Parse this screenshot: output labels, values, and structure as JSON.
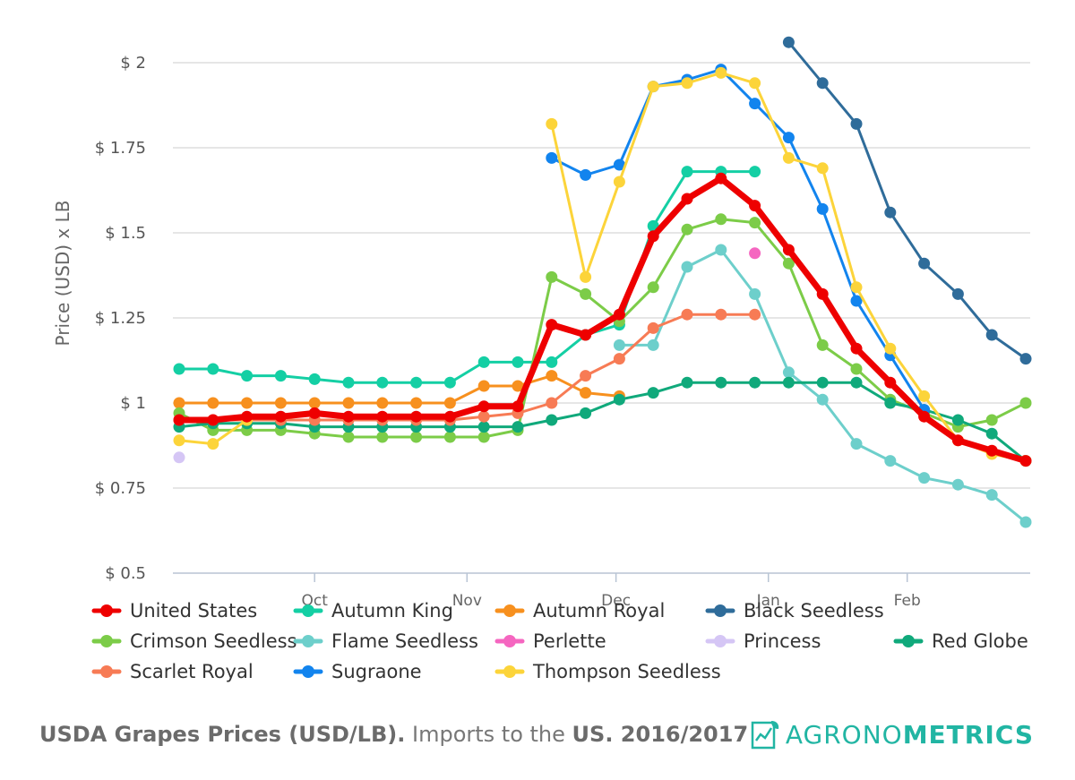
{
  "chart_data": {
    "type": "line",
    "ylabel": "Price (USD) x LB",
    "ylim": [
      0.5,
      2.05
    ],
    "yticks": [
      0.5,
      0.75,
      1,
      1.25,
      1.5,
      1.75,
      2
    ],
    "ytick_labels": [
      "$ 0.5",
      "$ 0.75",
      "$ 1",
      "$ 1.25",
      "$ 1.5",
      "$ 1.75",
      "$ 2"
    ],
    "x_index_range": [
      0,
      25.3
    ],
    "xticks": [
      {
        "label": "Oct",
        "at": 4
      },
      {
        "label": "Nov",
        "at": 8.5
      },
      {
        "label": "Dec",
        "at": 12.9
      },
      {
        "label": "Jan",
        "at": 17.4
      },
      {
        "label": "Feb",
        "at": 21.5
      }
    ],
    "weeks": 26,
    "series": [
      {
        "name": "United States",
        "color": "#ee0000",
        "weight": 7,
        "values": [
          0.95,
          0.95,
          0.96,
          0.96,
          0.97,
          0.96,
          0.96,
          0.96,
          0.96,
          0.99,
          0.99,
          1.23,
          1.2,
          1.26,
          1.49,
          1.6,
          1.66,
          1.58,
          1.45,
          1.32,
          1.16,
          1.06,
          0.96,
          0.89,
          0.86,
          0.83
        ]
      },
      {
        "name": "Autumn King",
        "color": "#14cfa4",
        "weight": 3,
        "values": [
          1.1,
          1.1,
          1.08,
          1.08,
          1.07,
          1.06,
          1.06,
          1.06,
          1.06,
          1.12,
          1.12,
          1.12,
          1.2,
          1.23,
          1.52,
          1.68,
          1.68,
          1.68,
          null,
          null,
          null,
          null,
          null,
          null,
          null,
          null
        ]
      },
      {
        "name": "Autumn Royal",
        "color": "#f7901e",
        "weight": 3,
        "values": [
          1.0,
          1.0,
          1.0,
          1.0,
          1.0,
          1.0,
          1.0,
          1.0,
          1.0,
          1.05,
          1.05,
          1.08,
          1.03,
          1.02,
          null,
          null,
          null,
          null,
          null,
          null,
          null,
          null,
          null,
          null,
          null,
          null
        ]
      },
      {
        "name": "Black Seedless",
        "color": "#2f6c9a",
        "weight": 3,
        "values": [
          null,
          null,
          null,
          null,
          null,
          null,
          null,
          null,
          null,
          null,
          null,
          null,
          null,
          null,
          null,
          null,
          null,
          null,
          2.06,
          1.94,
          1.82,
          1.56,
          1.41,
          1.32,
          1.2,
          1.13
        ]
      },
      {
        "name": "Crimson Seedless",
        "color": "#7ccc48",
        "weight": 3,
        "values": [
          0.97,
          0.92,
          0.92,
          0.92,
          0.91,
          0.9,
          0.9,
          0.9,
          0.9,
          0.9,
          0.92,
          1.37,
          1.32,
          1.24,
          1.34,
          1.51,
          1.54,
          1.53,
          1.41,
          1.17,
          1.1,
          1.01,
          0.97,
          0.93,
          0.95,
          1.0
        ]
      },
      {
        "name": "Flame Seedless",
        "color": "#6dcfcb",
        "weight": 3,
        "values": [
          null,
          null,
          null,
          null,
          null,
          null,
          null,
          null,
          null,
          null,
          null,
          null,
          null,
          1.17,
          1.17,
          1.4,
          1.45,
          1.32,
          1.09,
          1.01,
          0.88,
          0.83,
          0.78,
          0.76,
          0.73,
          0.65
        ]
      },
      {
        "name": "Perlette",
        "color": "#f566c0",
        "weight": 3,
        "values": [
          null,
          null,
          null,
          null,
          null,
          null,
          null,
          null,
          null,
          null,
          null,
          null,
          null,
          null,
          null,
          null,
          null,
          1.44,
          null,
          null,
          null,
          null,
          null,
          null,
          null,
          null
        ]
      },
      {
        "name": "Princess",
        "color": "#d5c6f5",
        "weight": 3,
        "values": [
          0.84,
          null,
          null,
          null,
          null,
          null,
          null,
          null,
          null,
          null,
          null,
          null,
          null,
          null,
          null,
          null,
          null,
          null,
          null,
          null,
          null,
          null,
          null,
          null,
          null,
          null
        ]
      },
      {
        "name": "Red Globe",
        "color": "#10a97b",
        "weight": 3,
        "values": [
          0.93,
          0.94,
          0.94,
          0.94,
          0.93,
          0.93,
          0.93,
          0.93,
          0.93,
          0.93,
          0.93,
          0.95,
          0.97,
          1.01,
          1.03,
          1.06,
          1.06,
          1.06,
          1.06,
          1.06,
          1.06,
          1.0,
          0.98,
          0.95,
          0.91,
          0.83
        ]
      },
      {
        "name": "Scarlet Royal",
        "color": "#f77b55",
        "weight": 3,
        "values": [
          0.95,
          0.95,
          0.95,
          0.95,
          0.95,
          0.95,
          0.95,
          0.95,
          0.95,
          0.96,
          0.97,
          1.0,
          1.08,
          1.13,
          1.22,
          1.26,
          1.26,
          1.26,
          null,
          null,
          null,
          null,
          null,
          null,
          null,
          null
        ]
      },
      {
        "name": "Sugraone",
        "color": "#1284ee",
        "weight": 3,
        "values": [
          null,
          null,
          null,
          null,
          null,
          null,
          null,
          null,
          null,
          null,
          null,
          1.72,
          1.67,
          1.7,
          1.93,
          1.95,
          1.98,
          1.88,
          1.78,
          1.57,
          1.3,
          1.14,
          0.98,
          null,
          null,
          null
        ]
      },
      {
        "name": "Thompson Seedless",
        "color": "#fcd43a",
        "weight": 3,
        "values": [
          0.89,
          0.88,
          0.95,
          null,
          null,
          null,
          null,
          null,
          null,
          null,
          null,
          1.82,
          1.37,
          1.65,
          1.93,
          1.94,
          1.97,
          1.94,
          1.72,
          1.69,
          1.34,
          1.16,
          1.02,
          0.89,
          0.85,
          0.83
        ]
      }
    ]
  },
  "footer": {
    "caption_bold_1": "USDA Grapes Prices (USD/LB).",
    "caption_normal": "Imports to the",
    "caption_bold_2": "US. 2016/2017",
    "brand_normal": "AGRONO",
    "brand_bold": "METRICS",
    "brand_color": "#21b5a3"
  }
}
